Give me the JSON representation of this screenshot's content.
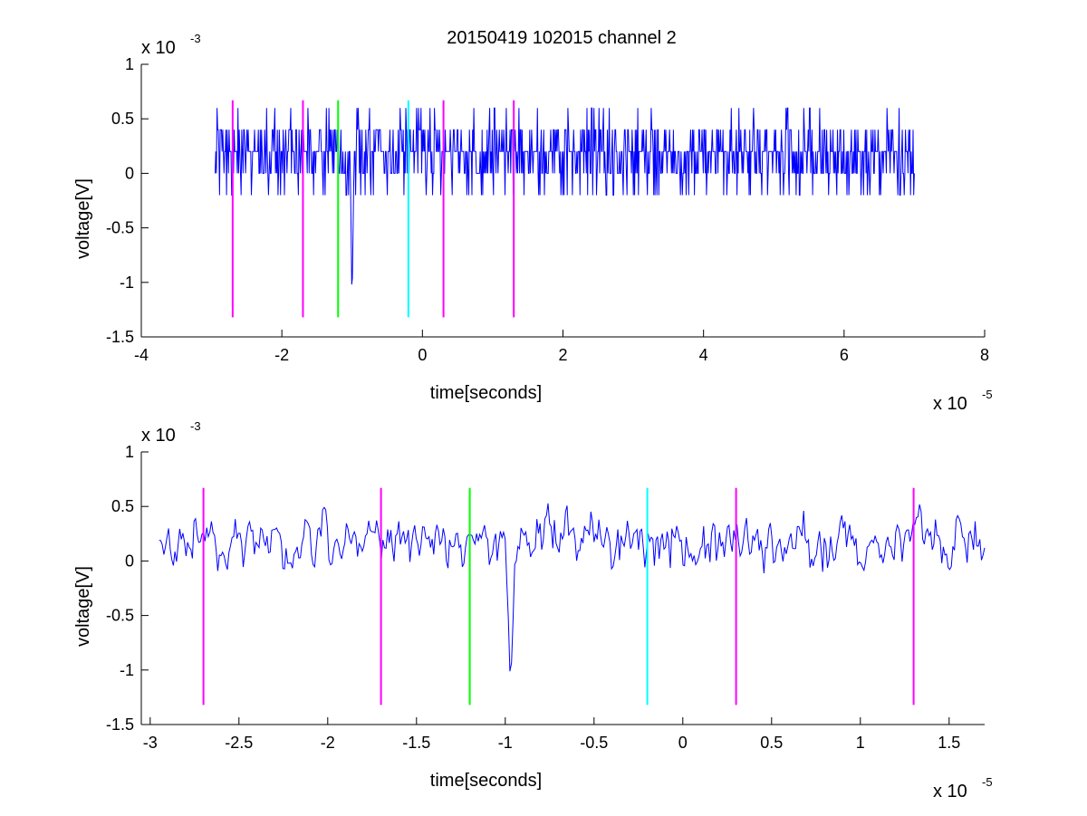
{
  "title": "20150419 102015 channel 2",
  "chart_data": [
    {
      "type": "line",
      "xlabel": "time[seconds]",
      "ylabel": "voltage[V]",
      "x_exponent_label": "x 10",
      "x_exponent": "-5",
      "y_exponent_label": "x 10",
      "y_exponent": "-3",
      "xlim": [
        -4,
        8
      ],
      "ylim": [
        -1.5,
        1
      ],
      "xticks": [
        -4,
        -2,
        0,
        2,
        4,
        6,
        8
      ],
      "xtick_labels": [
        "-4",
        "-2",
        "0",
        "2",
        "4",
        "6",
        "8"
      ],
      "yticks": [
        -1.5,
        -1,
        -0.5,
        0,
        0.5,
        1
      ],
      "ytick_labels": [
        "-1.5",
        "-1",
        "-0.5",
        "0",
        "0.5",
        "1"
      ],
      "signal": {
        "color": "#0000ff",
        "x_start": -2.95,
        "x_end": 7.0,
        "baseline": [
          0.2,
          0.0,
          0.2,
          0.4,
          0.2,
          0.0,
          -0.2
        ],
        "dip": {
          "x": -1.0,
          "min": -1.2
        }
      },
      "markers": [
        {
          "x": -2.7,
          "color": "#ff00ff",
          "y_range": [
            -1.32,
            0.67
          ]
        },
        {
          "x": -1.7,
          "color": "#ff00ff",
          "y_range": [
            -1.32,
            0.67
          ]
        },
        {
          "x": -1.2,
          "color": "#00ff00",
          "y_range": [
            -1.32,
            0.67
          ]
        },
        {
          "x": -0.2,
          "color": "#00ffff",
          "y_range": [
            -1.32,
            0.67
          ]
        },
        {
          "x": 0.3,
          "color": "#ff00ff",
          "y_range": [
            -1.32,
            0.67
          ]
        },
        {
          "x": 1.3,
          "color": "#ff00ff",
          "y_range": [
            -1.32,
            0.67
          ]
        }
      ]
    },
    {
      "type": "line",
      "xlabel": "time[seconds]",
      "ylabel": "voltage[V]",
      "x_exponent_label": "x 10",
      "x_exponent": "-5",
      "y_exponent_label": "x 10",
      "y_exponent": "-3",
      "xlim": [
        -3.05,
        1.7
      ],
      "ylim": [
        -1.5,
        1
      ],
      "xticks": [
        -3,
        -2.5,
        -2,
        -1.5,
        -1,
        -0.5,
        0,
        0.5,
        1,
        1.5
      ],
      "xtick_labels": [
        "-3",
        "-2.5",
        "-2",
        "-1.5",
        "-1",
        "-0.5",
        "0",
        "0.5",
        "1",
        "1.5"
      ],
      "yticks": [
        -1.5,
        -1,
        -0.5,
        0,
        0.5,
        1
      ],
      "ytick_labels": [
        "-1.5",
        "-1",
        "-0.5",
        "0",
        "0.5",
        "1"
      ],
      "signal": {
        "color": "#0000ff",
        "x_start": -2.95,
        "x_end": 1.7,
        "baseline": [
          0.2,
          0.0,
          0.2,
          0.4,
          0.2,
          0.0,
          -0.2
        ],
        "dip": {
          "x": -0.97,
          "min": -1.2
        }
      },
      "markers": [
        {
          "x": -2.7,
          "color": "#ff00ff",
          "y_range": [
            -1.32,
            0.67
          ]
        },
        {
          "x": -1.7,
          "color": "#ff00ff",
          "y_range": [
            -1.32,
            0.67
          ]
        },
        {
          "x": -1.2,
          "color": "#00ff00",
          "y_range": [
            -1.32,
            0.67
          ]
        },
        {
          "x": -0.2,
          "color": "#00ffff",
          "y_range": [
            -1.32,
            0.67
          ]
        },
        {
          "x": 0.3,
          "color": "#ff00ff",
          "y_range": [
            -1.32,
            0.67
          ]
        },
        {
          "x": 1.3,
          "color": "#ff00ff",
          "y_range": [
            -1.32,
            0.67
          ]
        }
      ]
    }
  ]
}
